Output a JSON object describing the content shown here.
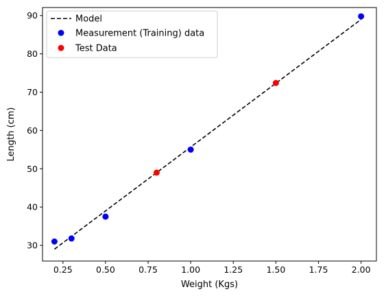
{
  "chart_data": {
    "type": "scatter",
    "xlabel": "Weight (Kgs)",
    "ylabel": "Length (cm)",
    "xlim": [
      0.13,
      2.09
    ],
    "ylim": [
      25.9,
      92.1
    ],
    "xticks": [
      0.25,
      0.5,
      0.75,
      1.0,
      1.25,
      1.5,
      1.75,
      2.0
    ],
    "xtick_labels": [
      "0.25",
      "0.50",
      "0.75",
      "1.00",
      "1.25",
      "1.50",
      "1.75",
      "2.00"
    ],
    "yticks": [
      30,
      40,
      50,
      60,
      70,
      80,
      90
    ],
    "ytick_labels": [
      "30",
      "40",
      "50",
      "60",
      "70",
      "80",
      "90"
    ],
    "grid": false,
    "legend_placement": "top-left",
    "series": [
      {
        "name": "Model",
        "kind": "line",
        "style": "dashed",
        "color": "#000000",
        "x": [
          0.2,
          2.0
        ],
        "y": [
          29.0,
          89.0
        ]
      },
      {
        "name": "Measurement (Training) data",
        "kind": "scatter",
        "color": "#0000ff",
        "x": [
          0.2,
          0.3,
          0.5,
          1.0,
          2.0
        ],
        "y": [
          31.0,
          31.8,
          37.5,
          55.0,
          89.8
        ]
      },
      {
        "name": "Test Data",
        "kind": "scatter",
        "color": "#ff0000",
        "x": [
          0.8,
          1.5
        ],
        "y": [
          49.0,
          72.4
        ]
      }
    ]
  }
}
